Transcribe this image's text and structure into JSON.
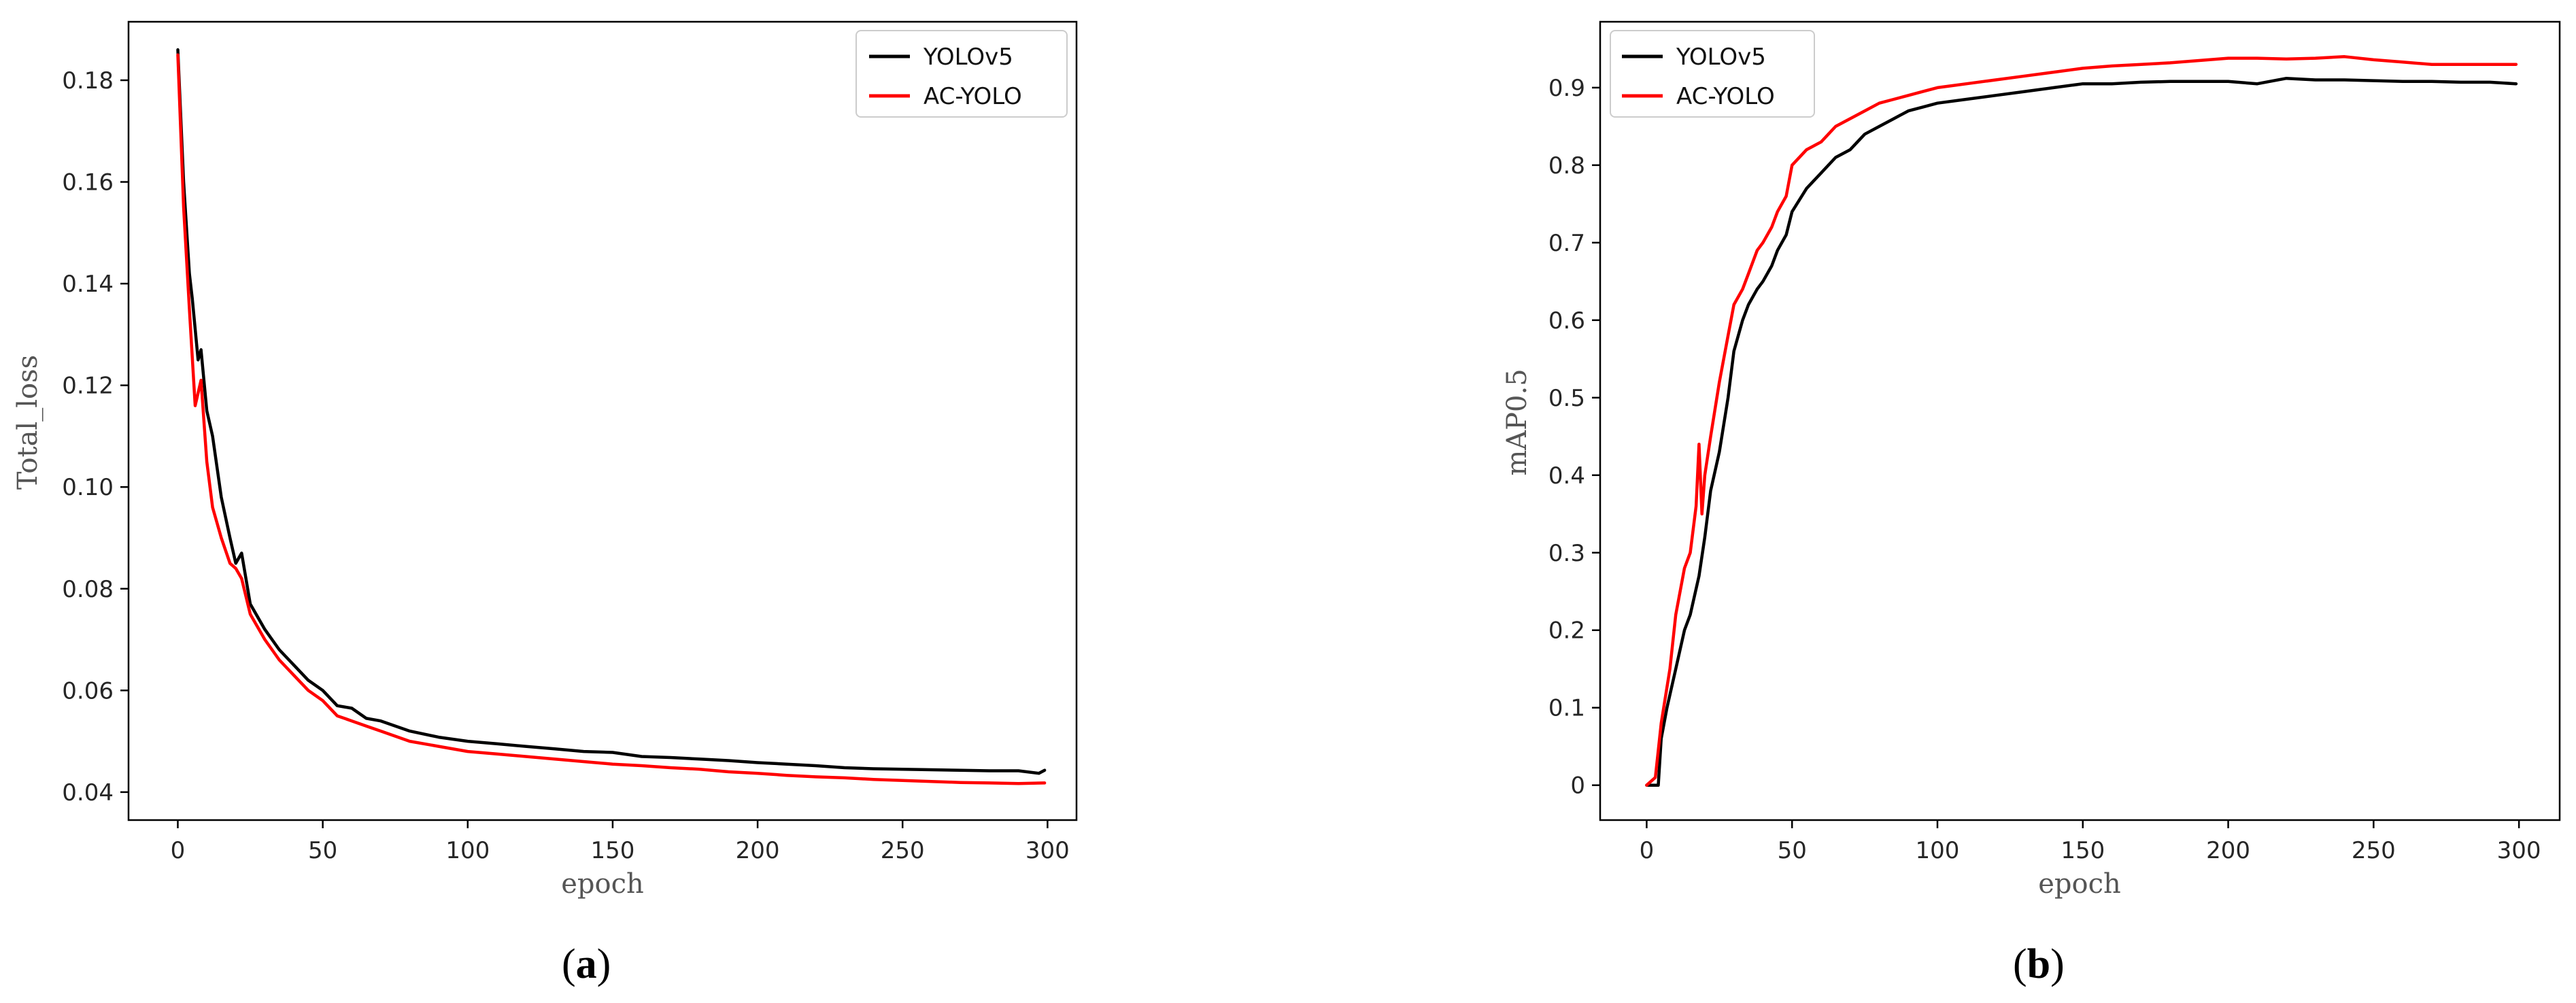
{
  "chart_data": [
    {
      "id": "a",
      "type": "line",
      "caption": {
        "open": "(",
        "letter": "a",
        "close": ")"
      },
      "xlabel": "epoch",
      "ylabel": "Total_loss",
      "xlim": [
        -17,
        310
      ],
      "ylim": [
        0.0345,
        0.1915
      ],
      "xticks": [
        0,
        50,
        100,
        150,
        200,
        250,
        300
      ],
      "xtick_labels": [
        "0",
        "50",
        "100",
        "150",
        "200",
        "250",
        "300"
      ],
      "yticks": [
        0.04,
        0.06,
        0.08,
        0.1,
        0.12,
        0.14,
        0.16,
        0.18
      ],
      "ytick_labels": [
        "0.04",
        "0.06",
        "0.08",
        "0.10",
        "0.12",
        "0.14",
        "0.16",
        "0.18"
      ],
      "grid": false,
      "legend": "top-right",
      "series": [
        {
          "name": "YOLOv5",
          "color": "#000000",
          "x": [
            0,
            2,
            4,
            5,
            7,
            8,
            10,
            12,
            15,
            18,
            20,
            22,
            25,
            30,
            35,
            40,
            45,
            50,
            55,
            60,
            65,
            70,
            80,
            90,
            100,
            110,
            120,
            130,
            140,
            150,
            160,
            170,
            180,
            190,
            200,
            210,
            220,
            230,
            240,
            250,
            260,
            270,
            280,
            290,
            297,
            299
          ],
          "values": [
            0.186,
            0.16,
            0.142,
            0.137,
            0.125,
            0.127,
            0.115,
            0.11,
            0.098,
            0.09,
            0.085,
            0.087,
            0.077,
            0.072,
            0.068,
            0.065,
            0.062,
            0.06,
            0.057,
            0.0565,
            0.0545,
            0.054,
            0.052,
            0.0508,
            0.05,
            0.0495,
            0.049,
            0.0485,
            0.048,
            0.0478,
            0.047,
            0.0468,
            0.0465,
            0.0462,
            0.0458,
            0.0455,
            0.0452,
            0.0448,
            0.0446,
            0.0445,
            0.0444,
            0.0443,
            0.0442,
            0.0442,
            0.0437,
            0.0443
          ]
        },
        {
          "name": "AC-YOLO",
          "color": "#ff0000",
          "x": [
            0,
            2,
            4,
            6,
            8,
            10,
            12,
            15,
            18,
            20,
            22,
            25,
            30,
            35,
            40,
            45,
            50,
            55,
            60,
            65,
            70,
            80,
            90,
            100,
            110,
            120,
            130,
            140,
            150,
            160,
            170,
            180,
            190,
            200,
            210,
            220,
            230,
            240,
            250,
            260,
            270,
            280,
            290,
            299
          ],
          "values": [
            0.185,
            0.155,
            0.135,
            0.116,
            0.121,
            0.105,
            0.096,
            0.09,
            0.085,
            0.084,
            0.082,
            0.075,
            0.07,
            0.066,
            0.063,
            0.06,
            0.058,
            0.055,
            0.054,
            0.053,
            0.052,
            0.05,
            0.049,
            0.048,
            0.0475,
            0.047,
            0.0465,
            0.046,
            0.0455,
            0.0452,
            0.0448,
            0.0445,
            0.044,
            0.0437,
            0.0433,
            0.043,
            0.0428,
            0.0425,
            0.0423,
            0.0421,
            0.0419,
            0.0418,
            0.0417,
            0.0418
          ]
        }
      ]
    },
    {
      "id": "b",
      "type": "line",
      "caption": {
        "open": "(",
        "letter": "b",
        "close": ")"
      },
      "xlabel": "epoch",
      "ylabel": "mAP0.5",
      "xlim": [
        -16,
        314
      ],
      "ylim": [
        -0.045,
        0.985
      ],
      "xticks": [
        0,
        50,
        100,
        150,
        200,
        250,
        300
      ],
      "xtick_labels": [
        "0",
        "50",
        "100",
        "150",
        "200",
        "250",
        "300"
      ],
      "yticks": [
        0,
        0.1,
        0.2,
        0.3,
        0.4,
        0.5,
        0.6,
        0.7,
        0.8,
        0.9
      ],
      "ytick_labels": [
        "0",
        "0.1",
        "0.2",
        "0.3",
        "0.4",
        "0.5",
        "0.6",
        "0.7",
        "0.8",
        "0.9"
      ],
      "grid": false,
      "legend": "top-left",
      "series": [
        {
          "name": "YOLOv5",
          "color": "#000000",
          "x": [
            0,
            4,
            5,
            7,
            10,
            13,
            15,
            18,
            20,
            22,
            25,
            28,
            30,
            33,
            35,
            38,
            40,
            43,
            45,
            48,
            50,
            55,
            60,
            65,
            70,
            75,
            80,
            85,
            90,
            95,
            100,
            110,
            120,
            130,
            140,
            150,
            160,
            170,
            180,
            190,
            200,
            210,
            220,
            230,
            240,
            250,
            260,
            270,
            280,
            290,
            299
          ],
          "values": [
            0,
            0,
            0.06,
            0.1,
            0.15,
            0.2,
            0.22,
            0.27,
            0.32,
            0.38,
            0.43,
            0.5,
            0.56,
            0.6,
            0.62,
            0.64,
            0.65,
            0.67,
            0.69,
            0.71,
            0.74,
            0.77,
            0.79,
            0.81,
            0.82,
            0.84,
            0.85,
            0.86,
            0.87,
            0.875,
            0.88,
            0.885,
            0.89,
            0.895,
            0.9,
            0.905,
            0.905,
            0.907,
            0.908,
            0.908,
            0.908,
            0.905,
            0.912,
            0.91,
            0.91,
            0.909,
            0.908,
            0.908,
            0.907,
            0.907,
            0.905
          ]
        },
        {
          "name": "AC-YOLO",
          "color": "#ff0000",
          "x": [
            0,
            3,
            5,
            8,
            10,
            13,
            15,
            17,
            18,
            19,
            20,
            22,
            25,
            28,
            30,
            33,
            35,
            38,
            40,
            43,
            45,
            48,
            50,
            55,
            60,
            65,
            70,
            75,
            80,
            85,
            90,
            95,
            100,
            110,
            120,
            130,
            140,
            150,
            160,
            170,
            180,
            190,
            200,
            210,
            220,
            230,
            240,
            250,
            260,
            270,
            280,
            290,
            299
          ],
          "values": [
            0,
            0.01,
            0.08,
            0.15,
            0.22,
            0.28,
            0.3,
            0.36,
            0.44,
            0.35,
            0.4,
            0.45,
            0.52,
            0.58,
            0.62,
            0.64,
            0.66,
            0.69,
            0.7,
            0.72,
            0.74,
            0.76,
            0.8,
            0.82,
            0.83,
            0.85,
            0.86,
            0.87,
            0.88,
            0.885,
            0.89,
            0.895,
            0.9,
            0.905,
            0.91,
            0.915,
            0.92,
            0.925,
            0.928,
            0.93,
            0.932,
            0.935,
            0.938,
            0.938,
            0.937,
            0.938,
            0.94,
            0.936,
            0.933,
            0.93,
            0.93,
            0.93,
            0.93
          ]
        }
      ]
    }
  ]
}
